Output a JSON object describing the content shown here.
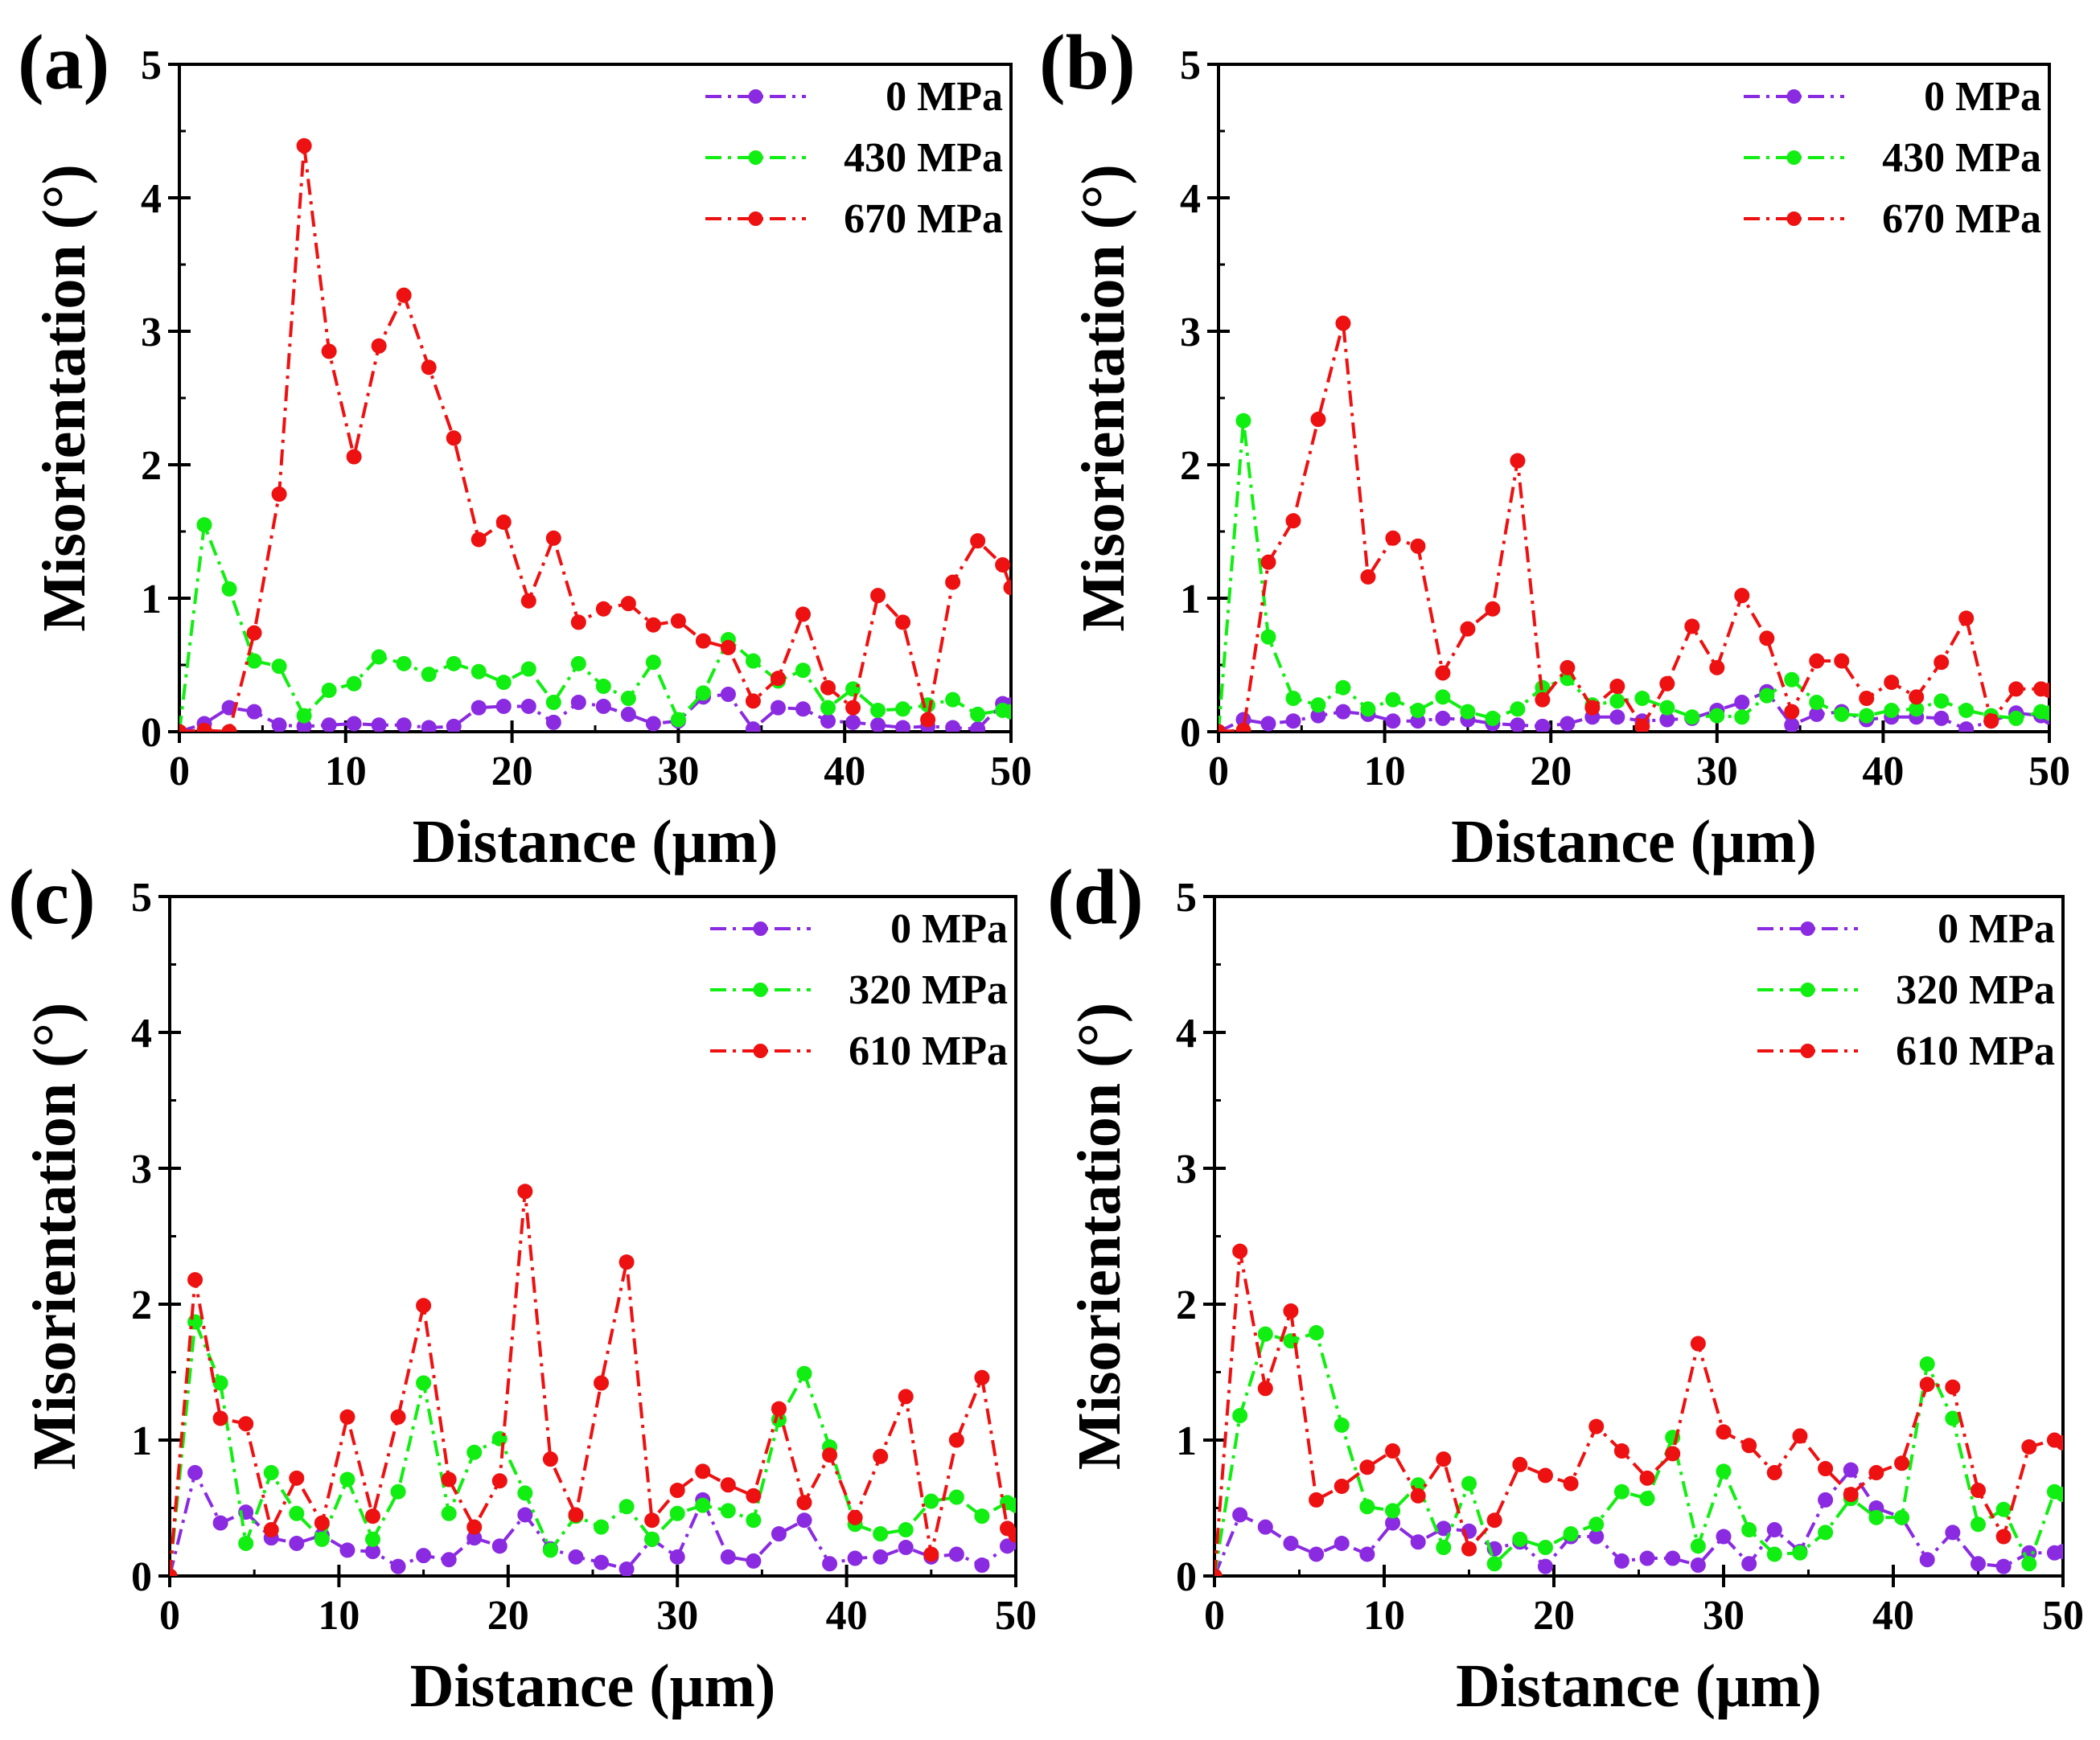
{
  "chart_data": [
    {
      "panel_label": "(a)",
      "type": "line",
      "xlabel": "Distance (μm)",
      "ylabel": "Misorientation (°)",
      "xlim": [
        0,
        50
      ],
      "ylim": [
        0,
        5
      ],
      "xticks": [
        0,
        10,
        20,
        30,
        40,
        50
      ],
      "yticks": [
        0,
        1,
        2,
        3,
        4,
        5
      ],
      "x": [
        0,
        1.5,
        3,
        4.5,
        6,
        7.5,
        9,
        10.5,
        12,
        13.5,
        15,
        16.5,
        18,
        19.5,
        21,
        22.5,
        24,
        25.5,
        27,
        28.5,
        30,
        31.5,
        33,
        34.5,
        36,
        37.5,
        39,
        40.5,
        42,
        43.5,
        45,
        46.5,
        48,
        49.5,
        50
      ],
      "series": [
        {
          "name": "0 MPa",
          "color": "#8a2be2",
          "values": [
            0,
            0.06,
            0.18,
            0.15,
            0.05,
            0.04,
            0.05,
            0.06,
            0.05,
            0.05,
            0.03,
            0.04,
            0.18,
            0.19,
            0.19,
            0.07,
            0.22,
            0.19,
            0.13,
            0.06,
            0.08,
            0.26,
            0.28,
            0.02,
            0.18,
            0.17,
            0.08,
            0.07,
            0.05,
            0.03,
            0.04,
            0.03,
            0.02,
            0.21,
            0.2
          ]
        },
        {
          "name": "430 MPa",
          "color": "#11ee11",
          "values": [
            0,
            1.55,
            1.07,
            0.53,
            0.49,
            0.12,
            0.31,
            0.36,
            0.56,
            0.51,
            0.43,
            0.51,
            0.45,
            0.37,
            0.47,
            0.22,
            0.51,
            0.34,
            0.25,
            0.52,
            0.09,
            0.29,
            0.69,
            0.53,
            0.38,
            0.46,
            0.18,
            0.32,
            0.16,
            0.17,
            0.2,
            0.24,
            0.13,
            0.16,
            0.15
          ]
        },
        {
          "name": "670 MPa",
          "color": "#ee1111",
          "values": [
            0,
            0.01,
            0.0,
            0.74,
            1.78,
            4.39,
            2.85,
            2.06,
            2.89,
            3.27,
            2.73,
            2.2,
            1.44,
            1.57,
            0.98,
            1.45,
            0.82,
            0.92,
            0.96,
            0.8,
            0.83,
            0.68,
            0.63,
            0.23,
            0.4,
            0.88,
            0.33,
            0.18,
            1.02,
            0.82,
            0.09,
            1.12,
            1.43,
            1.25,
            1.08
          ]
        }
      ]
    },
    {
      "panel_label": "(b)",
      "type": "line",
      "xlabel": "Distance (μm)",
      "ylabel": "Misorientation (°)",
      "xlim": [
        0,
        50
      ],
      "ylim": [
        0,
        5
      ],
      "xticks": [
        0,
        10,
        20,
        30,
        40,
        50
      ],
      "yticks": [
        0,
        1,
        2,
        3,
        4,
        5
      ],
      "x": [
        0,
        1.5,
        3,
        4.5,
        6,
        7.5,
        9,
        10.5,
        12,
        13.5,
        15,
        16.5,
        18,
        19.5,
        21,
        22.5,
        24,
        25.5,
        27,
        28.5,
        30,
        31.5,
        33,
        34.5,
        36,
        37.5,
        39,
        40.5,
        42,
        43.5,
        45,
        46.5,
        48,
        49.5,
        50
      ],
      "series": [
        {
          "name": "0 MPa",
          "color": "#8a2be2",
          "values": [
            0,
            0.09,
            0.06,
            0.08,
            0.12,
            0.15,
            0.13,
            0.08,
            0.08,
            0.1,
            0.09,
            0.06,
            0.05,
            0.04,
            0.06,
            0.11,
            0.11,
            0.08,
            0.09,
            0.1,
            0.16,
            0.22,
            0.3,
            0.05,
            0.13,
            0.15,
            0.09,
            0.11,
            0.11,
            0.1,
            0.02,
            0.08,
            0.14,
            0.12,
            0.11
          ]
        },
        {
          "name": "430 MPa",
          "color": "#11ee11",
          "values": [
            0,
            2.33,
            0.71,
            0.25,
            0.2,
            0.33,
            0.17,
            0.24,
            0.16,
            0.26,
            0.15,
            0.1,
            0.17,
            0.33,
            0.4,
            0.2,
            0.23,
            0.25,
            0.18,
            0.11,
            0.12,
            0.11,
            0.27,
            0.39,
            0.22,
            0.13,
            0.12,
            0.16,
            0.17,
            0.23,
            0.16,
            0.12,
            0.1,
            0.15,
            0.14
          ]
        },
        {
          "name": "670 MPa",
          "color": "#ee1111",
          "values": [
            0,
            0.01,
            1.27,
            1.58,
            2.34,
            3.06,
            1.16,
            1.45,
            1.39,
            0.44,
            0.77,
            0.92,
            2.03,
            0.24,
            0.48,
            0.18,
            0.34,
            0.04,
            0.36,
            0.79,
            0.48,
            1.02,
            0.7,
            0.15,
            0.53,
            0.53,
            0.25,
            0.37,
            0.26,
            0.52,
            0.85,
            0.08,
            0.32,
            0.32,
            0.31
          ]
        }
      ]
    },
    {
      "panel_label": "(c)",
      "type": "line",
      "xlabel": "Distance (μm)",
      "ylabel": "Misorientation (°)",
      "xlim": [
        0,
        50
      ],
      "ylim": [
        0,
        5
      ],
      "xticks": [
        0,
        10,
        20,
        30,
        40,
        50
      ],
      "yticks": [
        0,
        1,
        2,
        3,
        4,
        5
      ],
      "x": [
        0,
        1.5,
        3,
        4.5,
        6,
        7.5,
        9,
        10.5,
        12,
        13.5,
        15,
        16.5,
        18,
        19.5,
        21,
        22.5,
        24,
        25.5,
        27,
        28.5,
        30,
        31.5,
        33,
        34.5,
        36,
        37.5,
        39,
        40.5,
        42,
        43.5,
        45,
        46.5,
        48,
        49.5,
        50
      ],
      "series": [
        {
          "name": "0 MPa",
          "color": "#8a2be2",
          "values": [
            0,
            0.76,
            0.39,
            0.47,
            0.28,
            0.24,
            0.3,
            0.19,
            0.18,
            0.07,
            0.15,
            0.12,
            0.28,
            0.22,
            0.45,
            0.2,
            0.14,
            0.1,
            0.05,
            0.27,
            0.14,
            0.56,
            0.14,
            0.11,
            0.31,
            0.41,
            0.09,
            0.13,
            0.14,
            0.21,
            0.14,
            0.16,
            0.08,
            0.22,
            0.25
          ]
        },
        {
          "name": "320 MPa",
          "color": "#11ee11",
          "values": [
            0,
            1.87,
            1.42,
            0.24,
            0.76,
            0.46,
            0.27,
            0.71,
            0.27,
            0.62,
            1.42,
            0.46,
            0.91,
            1.01,
            0.61,
            0.19,
            0.44,
            0.36,
            0.51,
            0.27,
            0.46,
            0.52,
            0.48,
            0.41,
            1.15,
            1.49,
            0.95,
            0.38,
            0.31,
            0.34,
            0.55,
            0.58,
            0.44,
            0.54,
            0.52
          ]
        },
        {
          "name": "610 MPa",
          "color": "#ee1111",
          "values": [
            0,
            2.18,
            1.16,
            1.12,
            0.34,
            0.72,
            0.39,
            1.17,
            0.44,
            1.17,
            1.99,
            0.71,
            0.36,
            0.7,
            2.83,
            0.86,
            0.45,
            1.42,
            2.31,
            0.41,
            0.63,
            0.77,
            0.67,
            0.59,
            1.23,
            0.54,
            0.89,
            0.43,
            0.88,
            1.32,
            0.16,
            1.0,
            1.46,
            0.35,
            0.3
          ]
        }
      ]
    },
    {
      "panel_label": "(d)",
      "type": "line",
      "xlabel": "Distance (μm)",
      "ylabel": "Misorientation (°)",
      "xlim": [
        0,
        50
      ],
      "ylim": [
        0,
        5
      ],
      "xticks": [
        0,
        10,
        20,
        30,
        40,
        50
      ],
      "yticks": [
        0,
        1,
        2,
        3,
        4,
        5
      ],
      "x": [
        0,
        1.5,
        3,
        4.5,
        6,
        7.5,
        9,
        10.5,
        12,
        13.5,
        15,
        16.5,
        18,
        19.5,
        21,
        22.5,
        24,
        25.5,
        27,
        28.5,
        30,
        31.5,
        33,
        34.5,
        36,
        37.5,
        39,
        40.5,
        42,
        43.5,
        45,
        46.5,
        48,
        49.5,
        50
      ],
      "series": [
        {
          "name": "0 MPa",
          "color": "#8a2be2",
          "values": [
            0,
            0.45,
            0.36,
            0.24,
            0.16,
            0.24,
            0.16,
            0.39,
            0.25,
            0.35,
            0.33,
            0.2,
            0.25,
            0.07,
            0.29,
            0.29,
            0.11,
            0.13,
            0.13,
            0.08,
            0.29,
            0.09,
            0.34,
            0.18,
            0.56,
            0.78,
            0.5,
            0.43,
            0.12,
            0.32,
            0.09,
            0.07,
            0.17,
            0.17,
            0.18
          ]
        },
        {
          "name": "320 MPa",
          "color": "#11ee11",
          "values": [
            0,
            1.18,
            1.78,
            1.73,
            1.79,
            1.11,
            0.51,
            0.48,
            0.67,
            0.21,
            0.68,
            0.09,
            0.27,
            0.21,
            0.31,
            0.38,
            0.62,
            0.57,
            1.02,
            0.22,
            0.77,
            0.34,
            0.16,
            0.17,
            0.32,
            0.57,
            0.43,
            0.43,
            1.56,
            1.16,
            0.38,
            0.49,
            0.09,
            0.62,
            0.6
          ]
        },
        {
          "name": "610 MPa",
          "color": "#ee1111",
          "values": [
            0,
            2.39,
            1.38,
            1.95,
            0.56,
            0.66,
            0.8,
            0.92,
            0.59,
            0.86,
            0.2,
            0.41,
            0.82,
            0.74,
            0.68,
            1.1,
            0.92,
            0.72,
            0.9,
            1.71,
            1.06,
            0.96,
            0.76,
            1.03,
            0.79,
            0.6,
            0.76,
            0.83,
            1.41,
            1.39,
            0.63,
            0.29,
            0.95,
            1.0,
            0.98
          ]
        }
      ]
    }
  ]
}
